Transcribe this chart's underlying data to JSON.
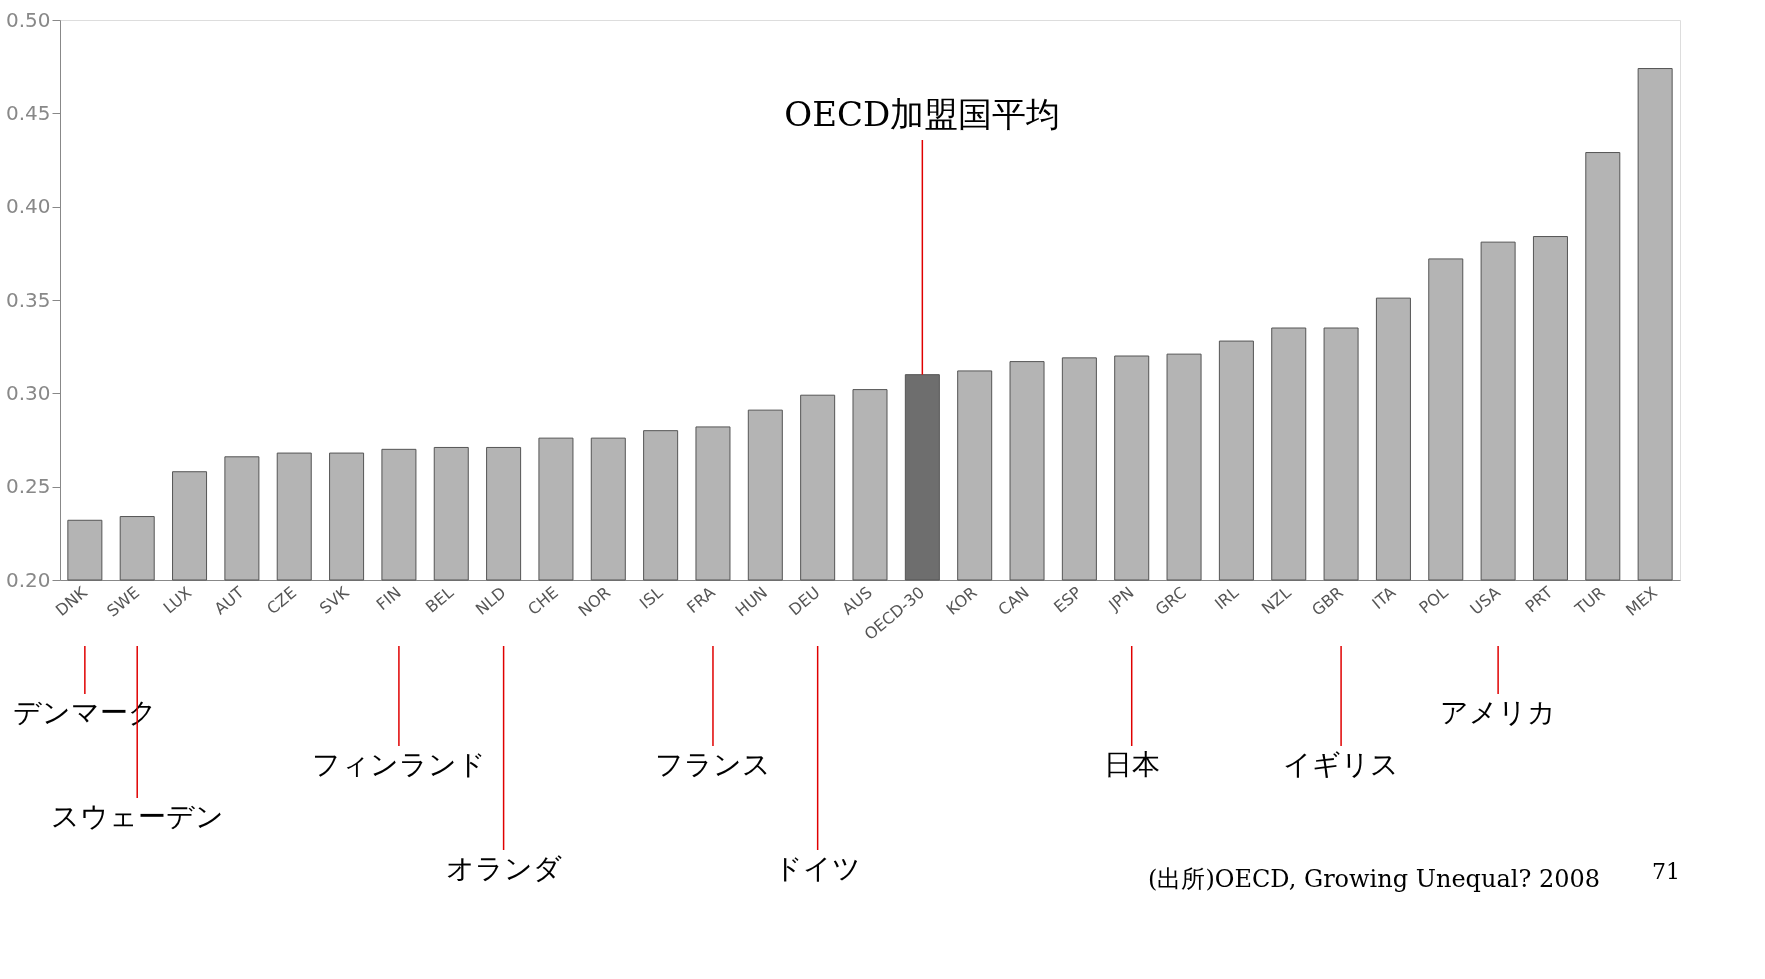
{
  "chart_data": {
    "type": "bar",
    "categories": [
      "DNK",
      "SWE",
      "LUX",
      "AUT",
      "CZE",
      "SVK",
      "FIN",
      "BEL",
      "NLD",
      "CHE",
      "NOR",
      "ISL",
      "FRA",
      "HUN",
      "DEU",
      "AUS",
      "OECD-30",
      "KOR",
      "CAN",
      "ESP",
      "JPN",
      "GRC",
      "IRL",
      "NZL",
      "GBR",
      "ITA",
      "POL",
      "USA",
      "PRT",
      "TUR",
      "MEX"
    ],
    "values": [
      0.232,
      0.234,
      0.258,
      0.266,
      0.268,
      0.268,
      0.27,
      0.271,
      0.271,
      0.276,
      0.276,
      0.28,
      0.282,
      0.291,
      0.299,
      0.302,
      0.31,
      0.312,
      0.317,
      0.319,
      0.32,
      0.321,
      0.328,
      0.335,
      0.335,
      0.351,
      0.372,
      0.381,
      0.384,
      0.429,
      0.474
    ],
    "colors": [
      "#b4b4b4",
      "#b4b4b4",
      "#b4b4b4",
      "#b4b4b4",
      "#b4b4b4",
      "#b4b4b4",
      "#b4b4b4",
      "#b4b4b4",
      "#b4b4b4",
      "#b4b4b4",
      "#b4b4b4",
      "#b4b4b4",
      "#b4b4b4",
      "#b4b4b4",
      "#b4b4b4",
      "#b4b4b4",
      "#6e6e6e",
      "#b4b4b4",
      "#b4b4b4",
      "#b4b4b4",
      "#b4b4b4",
      "#b4b4b4",
      "#b4b4b4",
      "#b4b4b4",
      "#b4b4b4",
      "#b4b4b4",
      "#b4b4b4",
      "#b4b4b4",
      "#b4b4b4",
      "#b4b4b4",
      "#b4b4b4"
    ],
    "ylim": [
      0.2,
      0.5
    ],
    "yticks": [
      {
        "value": 0.2,
        "label": "0.20"
      },
      {
        "value": 0.25,
        "label": "0.25"
      },
      {
        "value": 0.3,
        "label": "0.30"
      },
      {
        "value": 0.35,
        "label": "0.35"
      },
      {
        "value": 0.4,
        "label": "0.40"
      },
      {
        "value": 0.45,
        "label": "0.45"
      },
      {
        "value": 0.5,
        "label": "0.50"
      }
    ],
    "grid": false,
    "annotations": [
      {
        "text": "OECD加盟国平均",
        "x": "OECD-30",
        "y": 0.31
      },
      {
        "text": "デンマーク",
        "x": "DNK"
      },
      {
        "text": "スウェーデン",
        "x": "SWE"
      },
      {
        "text": "フィンランド",
        "x": "FIN"
      },
      {
        "text": "オランダ",
        "x": "NLD"
      },
      {
        "text": "フランス",
        "x": "FRA"
      },
      {
        "text": "ドイツ",
        "x": "DEU"
      },
      {
        "text": "日本",
        "x": "JPN"
      },
      {
        "text": "イギリス",
        "x": "GBR"
      },
      {
        "text": "アメリカ",
        "x": "USA"
      },
      "(出所)OECD, Growing Unequal? 2008",
      "71"
    ]
  }
}
